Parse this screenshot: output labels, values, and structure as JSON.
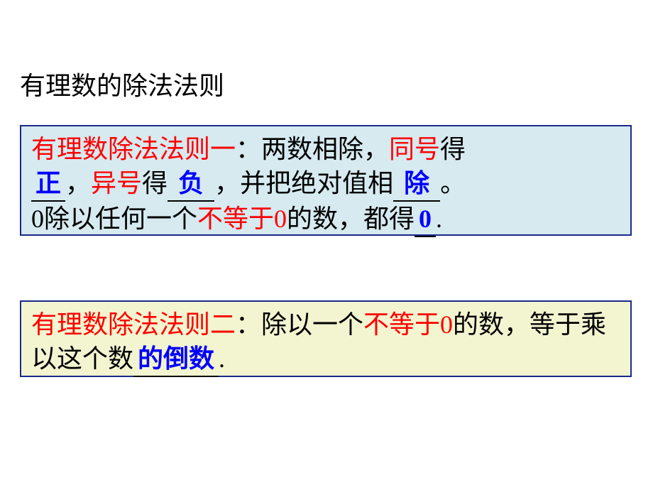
{
  "title": "有理数的除法法则",
  "box1": {
    "label": "有理数除法法则一",
    "text1_a": "：两数相除，",
    "red1": "同号",
    "text1_b": "得",
    "blank1": "正",
    "text2_a": "，",
    "red2": "异号",
    "text2_b": "得",
    "blank2": "负",
    "text2_c": "，并把绝对值相",
    "blank3": "除",
    "text2_d": "。",
    "text3_a": "0除以任何一个",
    "red3": "不等于0",
    "text3_b": "的数，都得",
    "blank4": "0",
    "text3_c": "."
  },
  "box2": {
    "label": "有理数除法法则二",
    "text1_a": "：除以一个",
    "red1": "不等于0",
    "text1_b": "的数，等于乘以这个数",
    "blank1": "的倒数",
    "text1_c": "."
  },
  "colors": {
    "bg": "#ffffff",
    "box1_bg": "#d6eaf0",
    "box2_bg": "#f2f5d0",
    "border": "#1a2a8a",
    "black": "#000000",
    "red": "#ff0000",
    "blue": "#0000ff"
  },
  "fontsize": 36,
  "lineheight": 48
}
